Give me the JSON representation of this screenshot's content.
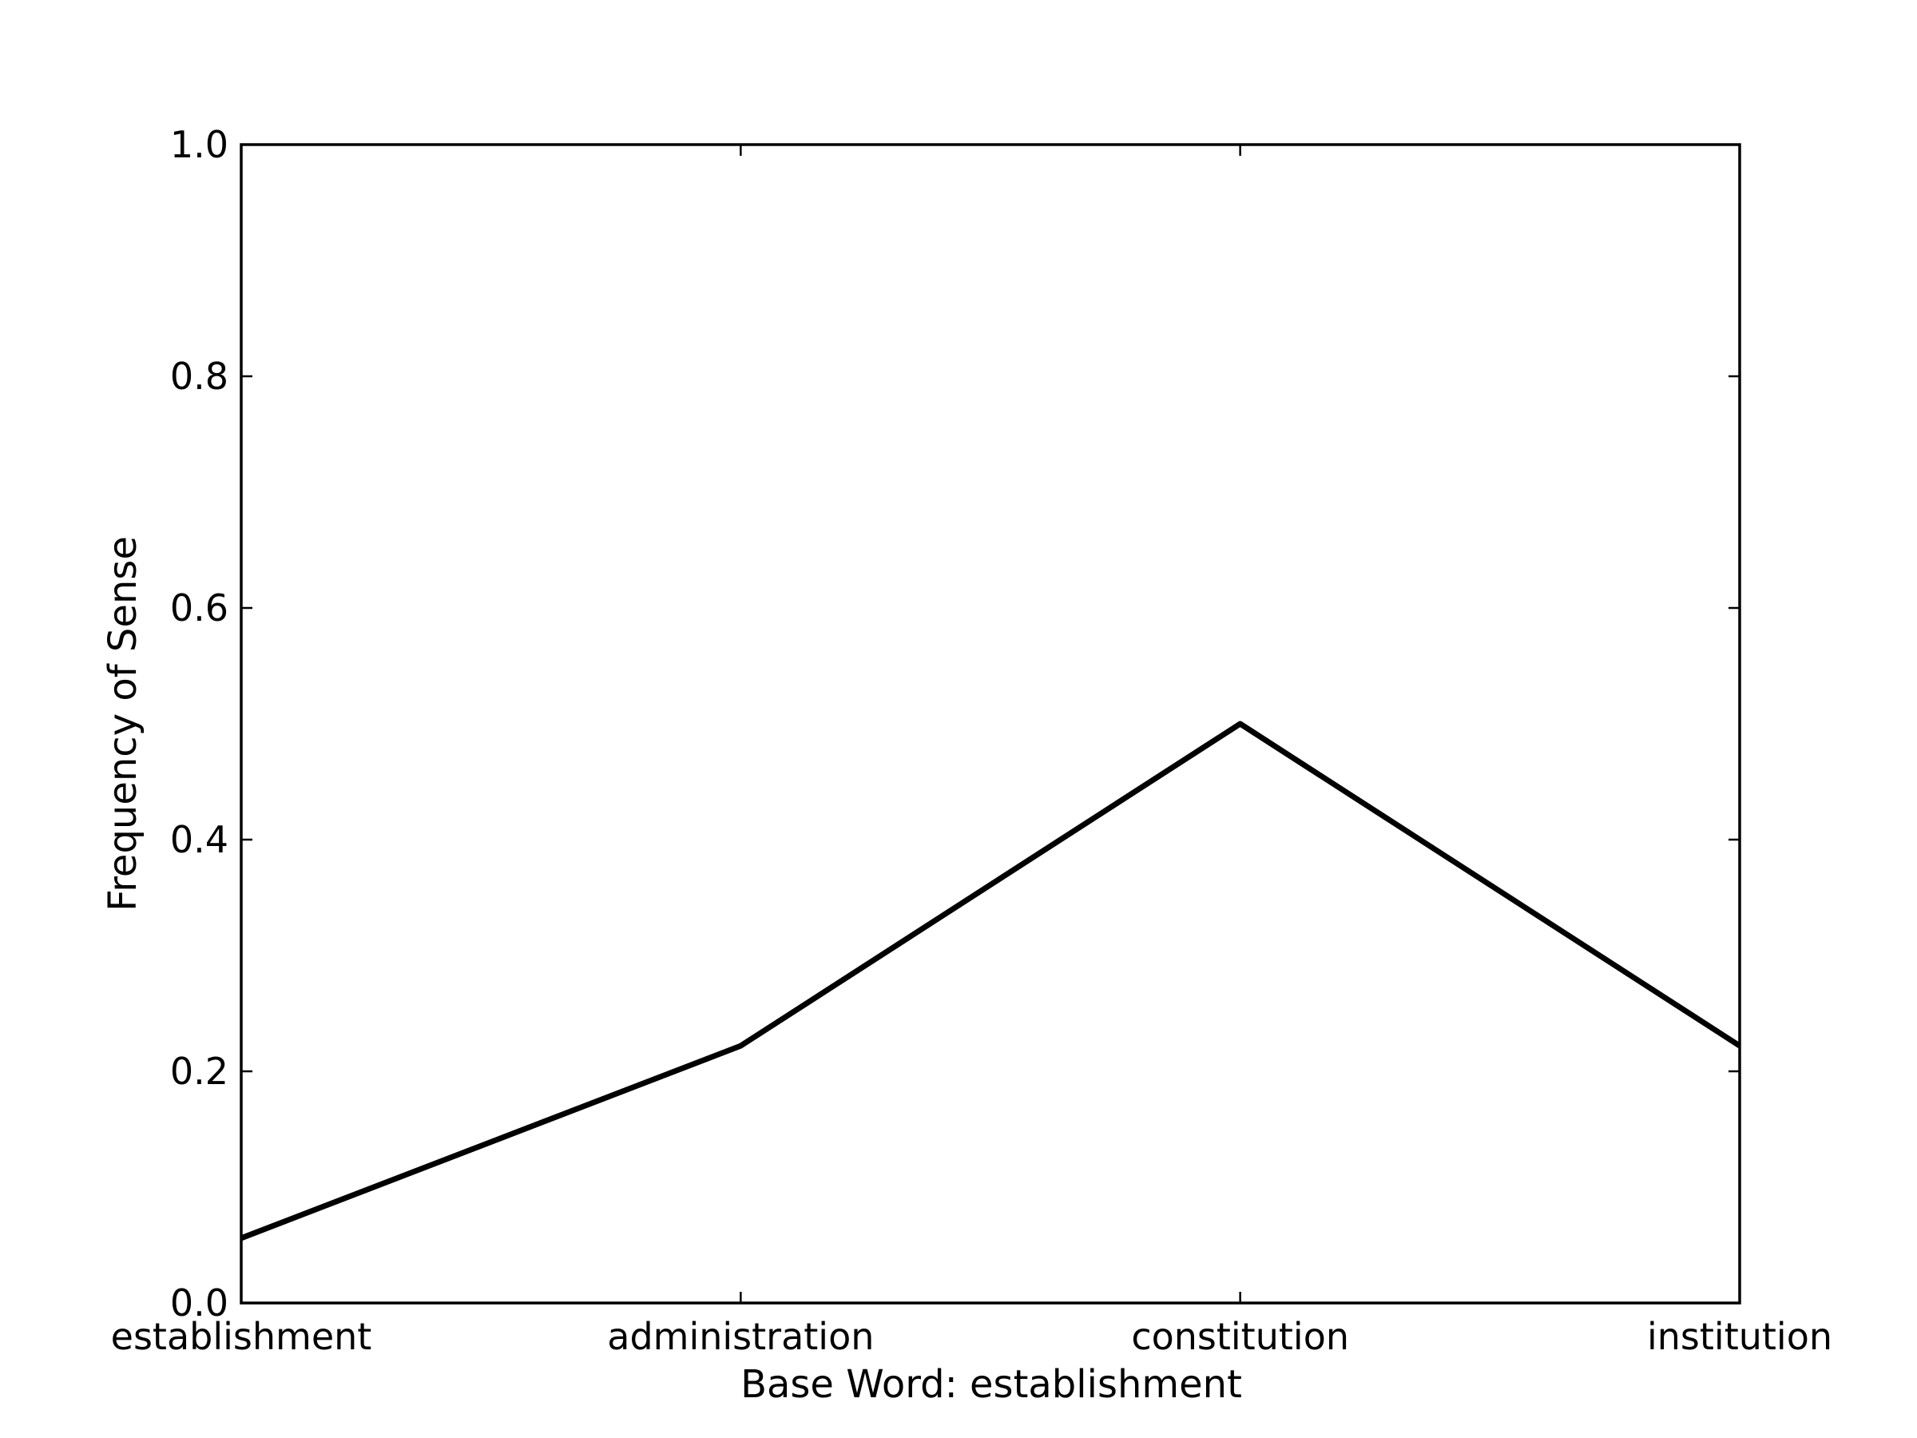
{
  "chart_data": {
    "type": "line",
    "title": "",
    "xlabel": "Base Word: establishment",
    "ylabel": "Frequency of Sense",
    "categories": [
      "establishment",
      "administration",
      "constitution",
      "institution"
    ],
    "series": [
      {
        "values": [
          0.056,
          0.222,
          0.5,
          0.222
        ]
      }
    ],
    "ylim": [
      0.0,
      1.0
    ],
    "yticks": [
      "0.0",
      "0.2",
      "0.4",
      "0.6",
      "0.8",
      "1.0"
    ],
    "grid": false,
    "legend": "none",
    "line_color": "#000000"
  }
}
